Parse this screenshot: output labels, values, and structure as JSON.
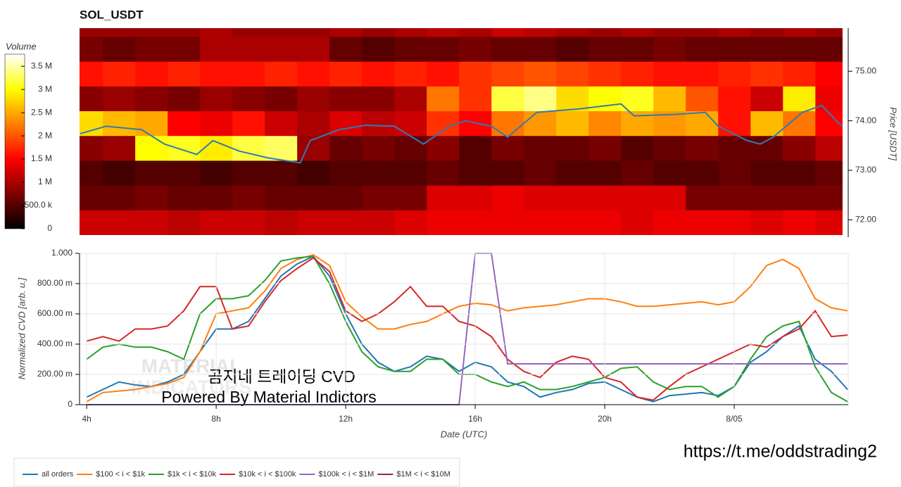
{
  "chart_data": [
    {
      "type": "heatmap",
      "title": "SOL_USDT",
      "colorbar_label": "Volume",
      "y_label": "Price [USDT]",
      "xlim": [
        3.78,
        27.34
      ],
      "ylim": [
        71.65,
        75.87
      ],
      "x_bins": [
        3.5,
        4.5,
        5.5,
        6.5,
        7.5,
        8.5,
        9.5,
        10.5,
        11.5,
        12.5,
        13.5,
        14.5,
        15.5,
        16.5,
        17.5,
        18.5,
        19.5,
        20.5,
        21.5,
        22.5,
        23.5,
        24.5,
        25.5,
        26.5,
        27.5
      ],
      "y_bins": [
        71.7,
        72.2,
        72.7,
        73.2,
        73.7,
        74.2,
        74.7,
        75.2,
        75.7,
        76.2
      ],
      "values": [
        [
          1.2,
          1.2,
          1.2,
          1.1,
          1.2,
          1.2,
          1.1,
          1.2,
          1.2,
          1.2,
          1.3,
          1.4,
          1.4,
          1.4,
          1.4,
          1.4,
          1.4,
          1.3,
          1.4,
          1.4,
          1.4,
          1.3,
          1.4,
          1.3
        ],
        [
          0.6,
          0.6,
          0.7,
          0.6,
          0.6,
          0.7,
          0.6,
          0.6,
          0.6,
          0.7,
          0.7,
          1.3,
          1.3,
          1.4,
          1.3,
          1.3,
          1.3,
          1.3,
          1.3,
          0.7,
          0.7,
          0.7,
          0.7,
          0.7
        ],
        [
          0.5,
          0.4,
          0.5,
          0.5,
          0.4,
          0.5,
          0.5,
          0.4,
          0.5,
          0.5,
          0.5,
          0.6,
          0.5,
          0.5,
          0.6,
          0.5,
          0.5,
          0.6,
          0.5,
          0.5,
          0.6,
          0.5,
          0.5,
          0.6
        ],
        [
          0.8,
          0.9,
          3.0,
          3.1,
          2.9,
          3.2,
          3.3,
          0.9,
          0.6,
          0.7,
          0.6,
          0.8,
          0.5,
          0.7,
          0.6,
          0.6,
          0.7,
          0.5,
          0.6,
          0.7,
          0.6,
          0.6,
          0.8,
          1.1
        ],
        [
          2.8,
          2.6,
          2.5,
          1.5,
          1.4,
          1.6,
          1.2,
          1.0,
          1.3,
          1.1,
          1.2,
          1.8,
          1.5,
          2.2,
          2.4,
          2.6,
          2.3,
          2.5,
          2.4,
          2.5,
          1.6,
          2.6,
          2.2,
          1.5
        ],
        [
          0.8,
          0.9,
          0.8,
          0.7,
          0.9,
          0.8,
          0.7,
          0.9,
          0.8,
          0.8,
          1.0,
          2.2,
          1.8,
          3.2,
          3.4,
          2.8,
          3.0,
          3.1,
          2.6,
          2.0,
          1.6,
          1.2,
          2.9,
          1.4
        ],
        [
          1.6,
          1.7,
          1.6,
          1.7,
          1.6,
          1.6,
          1.7,
          1.6,
          1.7,
          1.6,
          1.7,
          1.6,
          1.8,
          1.9,
          2.0,
          1.9,
          1.8,
          1.7,
          1.6,
          1.6,
          1.7,
          1.8,
          1.7,
          1.5
        ],
        [
          0.7,
          0.6,
          0.7,
          0.7,
          1.0,
          1.0,
          1.0,
          1.0,
          0.6,
          0.5,
          0.6,
          0.6,
          0.7,
          0.6,
          0.6,
          0.5,
          0.6,
          0.6,
          0.7,
          0.6,
          0.6,
          0.6,
          0.6,
          0.6
        ],
        [
          0.9,
          0.9,
          0.9,
          0.9,
          1.0,
          0.9,
          0.9,
          0.9,
          1.0,
          0.9,
          1.0,
          1.1,
          1.0,
          1.2,
          1.1,
          1.0,
          0.9,
          1.0,
          0.9,
          0.9,
          1.0,
          0.9,
          1.0,
          0.9
        ]
      ],
      "clim": [
        0,
        3.76
      ],
      "cticks": [
        0,
        {
          "value": 0.5,
          "label": "500.0 k"
        },
        {
          "value": 1,
          "label": "1 M"
        },
        {
          "value": 1.5,
          "label": "1.5 M"
        },
        {
          "value": 2,
          "label": "2 M"
        },
        {
          "value": 2.5,
          "label": "2.5 M"
        },
        {
          "value": 3,
          "label": "3 M"
        },
        {
          "value": 3.5,
          "label": "3.5 M"
        }
      ],
      "yticks": [
        {
          "value": 72,
          "label": "72.00"
        },
        {
          "value": 73,
          "label": "73.00"
        },
        {
          "value": 74,
          "label": "74.00"
        },
        {
          "value": 75,
          "label": "75.00"
        }
      ],
      "line": {
        "color": "#2f7bb4",
        "x": [
          3.8,
          4.6,
          5.7,
          6.4,
          7.4,
          7.9,
          8.7,
          9.6,
          10.6,
          10.9,
          11.8,
          12.6,
          13.5,
          14.4,
          15.2,
          15.7,
          16.5,
          17.0,
          17.9,
          19.2,
          20.5,
          20.9,
          22.2,
          23.1,
          23.5,
          24.4,
          24.8,
          25.2,
          26.1,
          26.7,
          27.2,
          27.5
        ],
        "values": [
          73.74,
          73.89,
          73.82,
          73.53,
          73.32,
          73.6,
          73.39,
          73.25,
          73.15,
          73.6,
          73.82,
          73.91,
          73.89,
          73.53,
          73.89,
          74.0,
          73.89,
          73.67,
          74.17,
          74.24,
          74.34,
          74.1,
          74.13,
          74.17,
          73.89,
          73.6,
          73.53,
          73.67,
          74.17,
          74.31,
          73.96,
          73.82
        ]
      }
    },
    {
      "type": "line",
      "x_label": "Date (UTC)",
      "y_label": "Normalized CVD [arb. u.]",
      "grid": true,
      "legend": "bottom",
      "xlim": [
        3.78,
        27.52
      ],
      "ylim": [
        0,
        1.0
      ],
      "xticks": [
        {
          "value": 4,
          "label": "4h"
        },
        {
          "value": 8,
          "label": "8h"
        },
        {
          "value": 12,
          "label": "12h"
        },
        {
          "value": 16,
          "label": "16h"
        },
        {
          "value": 20,
          "label": "20h"
        },
        {
          "value": 24,
          "label": "8/05"
        }
      ],
      "yticks": [
        0,
        {
          "value": 0.2,
          "label": "200.00 m"
        },
        {
          "value": 0.4,
          "label": "400.00 m"
        },
        {
          "value": 0.6,
          "label": "600.00 m"
        },
        {
          "value": 0.8,
          "label": "800.00 m"
        },
        {
          "value": 1.0,
          "label": "1.000"
        }
      ],
      "x": [
        4,
        4.5,
        5,
        5.5,
        6,
        6.5,
        7,
        7.5,
        8,
        8.5,
        9,
        9.5,
        10,
        10.5,
        11,
        11.5,
        12,
        12.5,
        13,
        13.5,
        14,
        14.5,
        15,
        15.5,
        16,
        16.5,
        17,
        17.5,
        18,
        18.5,
        19,
        19.5,
        20,
        20.5,
        21,
        21.5,
        22,
        22.5,
        23,
        23.5,
        24,
        24.5,
        25,
        25.5,
        26,
        26.5,
        27,
        27.5
      ],
      "series": [
        {
          "name": "all orders",
          "color": "#1f77b4",
          "values": [
            0.05,
            0.1,
            0.15,
            0.13,
            0.12,
            0.15,
            0.2,
            0.35,
            0.5,
            0.5,
            0.55,
            0.7,
            0.85,
            0.93,
            0.98,
            0.85,
            0.6,
            0.4,
            0.28,
            0.22,
            0.25,
            0.32,
            0.3,
            0.22,
            0.28,
            0.25,
            0.15,
            0.12,
            0.05,
            0.08,
            0.1,
            0.14,
            0.15,
            0.1,
            0.05,
            0.02,
            0.06,
            0.07,
            0.08,
            0.06,
            0.12,
            0.28,
            0.35,
            0.45,
            0.52,
            0.3,
            0.22,
            0.1
          ]
        },
        {
          "name": "$100 < i < $1k",
          "color": "#ff7f0e",
          "values": [
            0.02,
            0.08,
            0.09,
            0.1,
            0.12,
            0.14,
            0.18,
            0.35,
            0.6,
            0.62,
            0.64,
            0.75,
            0.9,
            0.96,
            0.99,
            0.92,
            0.68,
            0.58,
            0.5,
            0.5,
            0.53,
            0.55,
            0.6,
            0.65,
            0.67,
            0.66,
            0.62,
            0.64,
            0.65,
            0.66,
            0.68,
            0.7,
            0.7,
            0.68,
            0.65,
            0.65,
            0.66,
            0.67,
            0.68,
            0.66,
            0.68,
            0.78,
            0.92,
            0.96,
            0.9,
            0.7,
            0.64,
            0.62
          ]
        },
        {
          "name": "$1k < i < $10k",
          "color": "#2ca02c",
          "values": [
            0.3,
            0.38,
            0.4,
            0.38,
            0.38,
            0.35,
            0.3,
            0.6,
            0.7,
            0.7,
            0.72,
            0.82,
            0.95,
            0.97,
            0.98,
            0.8,
            0.55,
            0.35,
            0.25,
            0.22,
            0.22,
            0.3,
            0.3,
            0.2,
            0.2,
            0.15,
            0.12,
            0.15,
            0.1,
            0.1,
            0.12,
            0.15,
            0.18,
            0.24,
            0.25,
            0.15,
            0.1,
            0.12,
            0.12,
            0.05,
            0.12,
            0.3,
            0.45,
            0.52,
            0.55,
            0.25,
            0.08,
            0.02
          ]
        },
        {
          "name": "$10k < i < $100k",
          "color": "#d62728",
          "values": [
            0.42,
            0.45,
            0.42,
            0.5,
            0.5,
            0.52,
            0.62,
            0.78,
            0.78,
            0.5,
            0.52,
            0.68,
            0.82,
            0.9,
            0.97,
            0.88,
            0.62,
            0.55,
            0.6,
            0.68,
            0.78,
            0.65,
            0.65,
            0.55,
            0.52,
            0.45,
            0.3,
            0.22,
            0.18,
            0.28,
            0.32,
            0.3,
            0.18,
            0.15,
            0.05,
            0.03,
            0.12,
            0.2,
            0.25,
            0.3,
            0.35,
            0.4,
            0.38,
            0.45,
            0.5,
            0.62,
            0.45,
            0.46
          ]
        },
        {
          "name": "$100k < i < $1M",
          "color": "#9467bd",
          "values": [
            0,
            0,
            0,
            0,
            0,
            0,
            0,
            0,
            0,
            0,
            0,
            0,
            0,
            0,
            0,
            0,
            0,
            0,
            0,
            0,
            0,
            0,
            0,
            0,
            1,
            1,
            0.27,
            0.27,
            0.27,
            0.27,
            0.27,
            0.27,
            0.27,
            0.27,
            0.27,
            0.27,
            0.27,
            0.27,
            0.27,
            0.27,
            0.27,
            0.27,
            0.27,
            0.27,
            0.27,
            0.27,
            0.27,
            0.27
          ]
        },
        {
          "name": "$1M < i < $10M",
          "color": "#8c2d3f",
          "values": [
            null,
            null,
            null,
            null,
            null,
            null,
            null,
            null,
            null,
            null,
            null,
            null,
            null,
            null,
            null,
            null,
            null,
            null,
            null,
            null,
            null,
            null,
            null,
            null,
            null,
            null,
            null,
            null,
            null,
            null,
            null,
            null,
            null,
            null,
            null,
            null,
            null,
            null,
            null,
            null,
            null,
            null,
            null,
            null,
            null,
            null,
            null,
            null
          ]
        }
      ],
      "annotations": [
        "MATERIAL",
        "INDICATORS",
        "곰지네 트레이딩 CVD",
        "Powered By Material Indictors"
      ]
    }
  ],
  "link": "https://t.me/oddstrading2"
}
